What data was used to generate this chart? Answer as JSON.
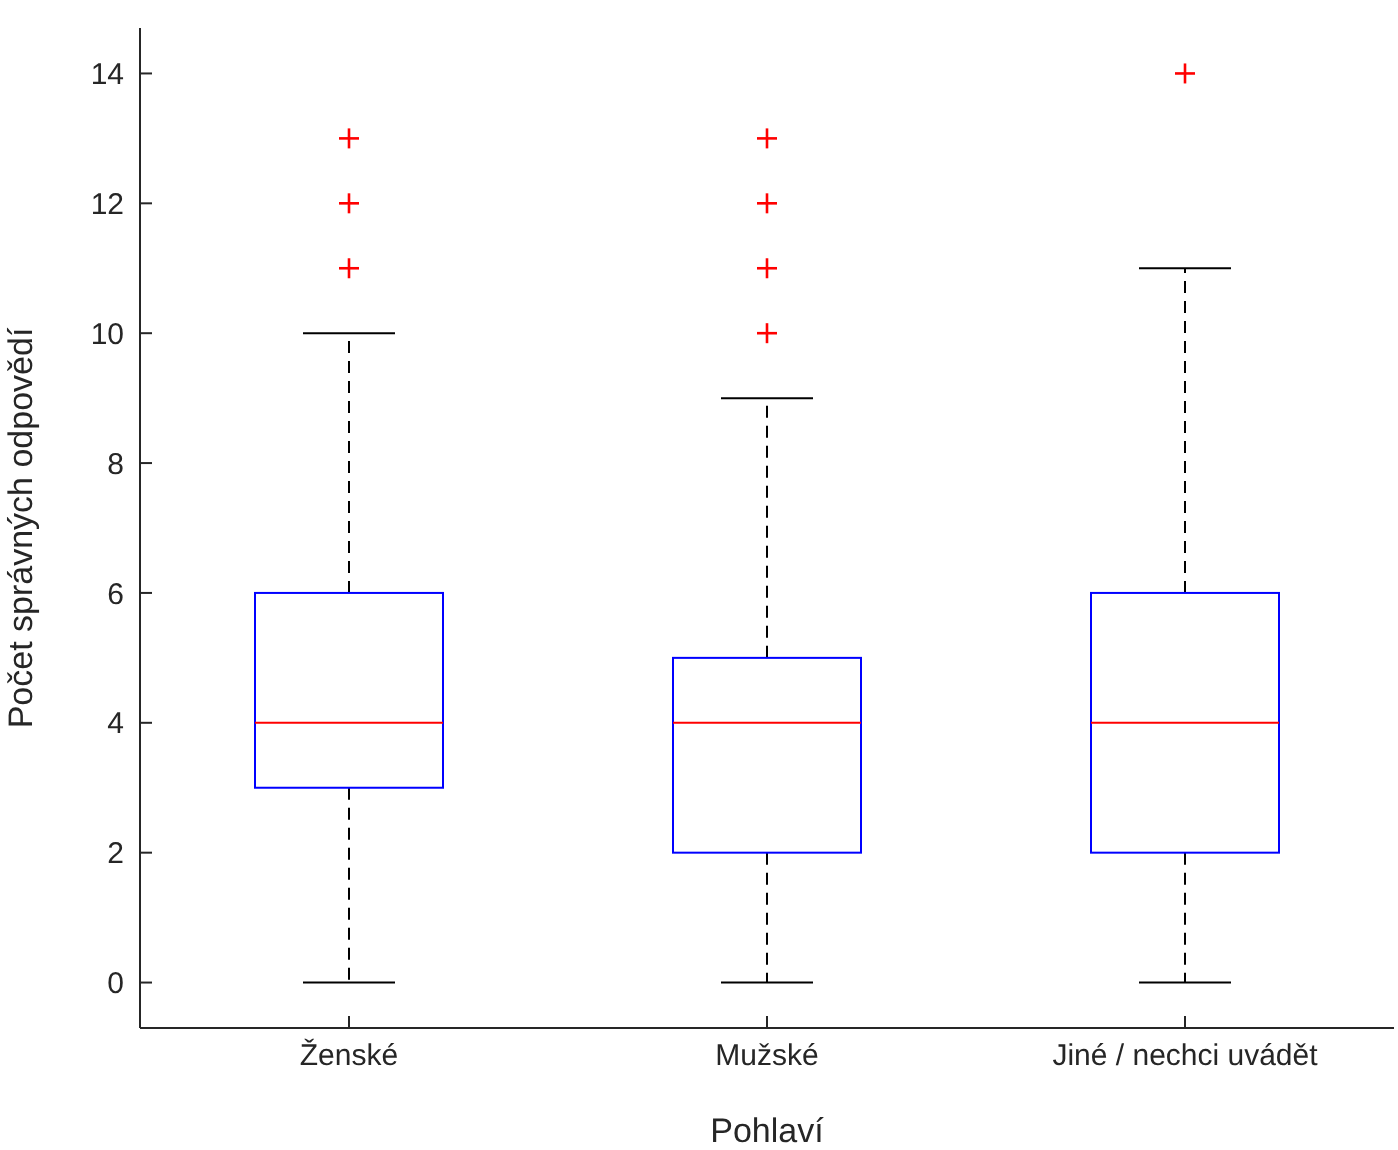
{
  "chart_data": {
    "type": "box",
    "xlabel": "Pohlaví",
    "ylabel": "Počet správných odpovědí",
    "categories": [
      "Ženské",
      "Mužské",
      "Jiné / nechci uvádět"
    ],
    "color": "#0000ff",
    "boxes": [
      {
        "low": 0,
        "q1": 3,
        "median": 4,
        "q3": 6,
        "high": 10,
        "outliers": [
          11,
          12,
          13
        ]
      },
      {
        "low": 0,
        "q1": 2,
        "median": 4,
        "q3": 5,
        "high": 9,
        "outliers": [
          10,
          11,
          12,
          13
        ]
      },
      {
        "low": 0,
        "q1": 2,
        "median": 4,
        "q3": 6,
        "high": 11,
        "outliers": [
          14
        ]
      }
    ],
    "ylim": [
      -0.7,
      14.7
    ],
    "yticks": [
      0,
      2,
      4,
      6,
      8,
      10,
      12,
      14
    ],
    "grid": false
  }
}
